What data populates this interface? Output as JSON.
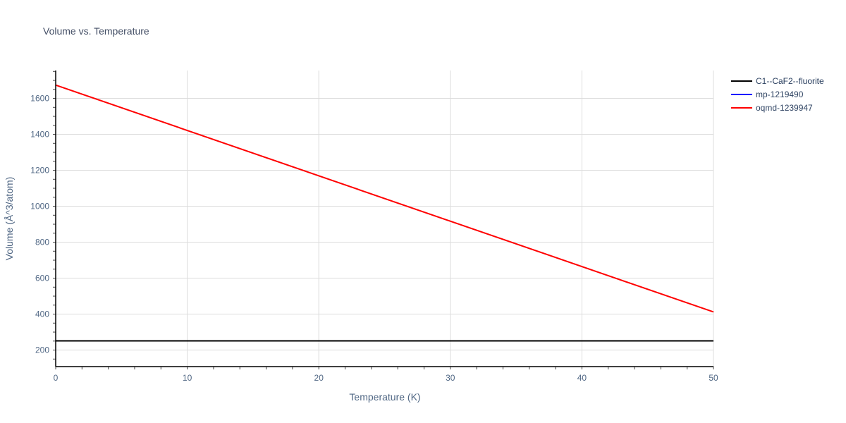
{
  "title": "Volume vs. Temperature",
  "chart_data": {
    "type": "line",
    "title": "Volume vs. Temperature",
    "xlabel": "Temperature (K)",
    "ylabel": "Volume (Å^3/atom)",
    "xlim": [
      0,
      50
    ],
    "ylim": [
      108,
      1755
    ],
    "xticks": [
      0,
      10,
      20,
      30,
      40,
      50
    ],
    "yticks": [
      200,
      400,
      600,
      800,
      1000,
      1200,
      1400,
      1600
    ],
    "grid": true,
    "legend_position": "right",
    "series": [
      {
        "name": "C1--CaF2--fluorite",
        "color": "#000000",
        "x": [
          0,
          50
        ],
        "values": [
          251,
          251
        ]
      },
      {
        "name": "mp-1219490",
        "color": "#0000ff",
        "x": [
          0,
          50
        ],
        "values": [
          251,
          251
        ]
      },
      {
        "name": "oqmd-1239947",
        "color": "#ff0000",
        "x": [
          0,
          50
        ],
        "values": [
          1674,
          412
        ]
      }
    ]
  },
  "legend": {
    "items": [
      "C1--CaF2--fluorite",
      "mp-1219490",
      "oqmd-1239947"
    ]
  },
  "axes": {
    "x_label": "Temperature (K)",
    "y_label": "Volume (Å^3/atom)",
    "x_ticks": [
      "0",
      "10",
      "20",
      "30",
      "40",
      "50"
    ],
    "y_ticks": [
      "200",
      "400",
      "600",
      "800",
      "1000",
      "1200",
      "1400",
      "1600"
    ]
  }
}
